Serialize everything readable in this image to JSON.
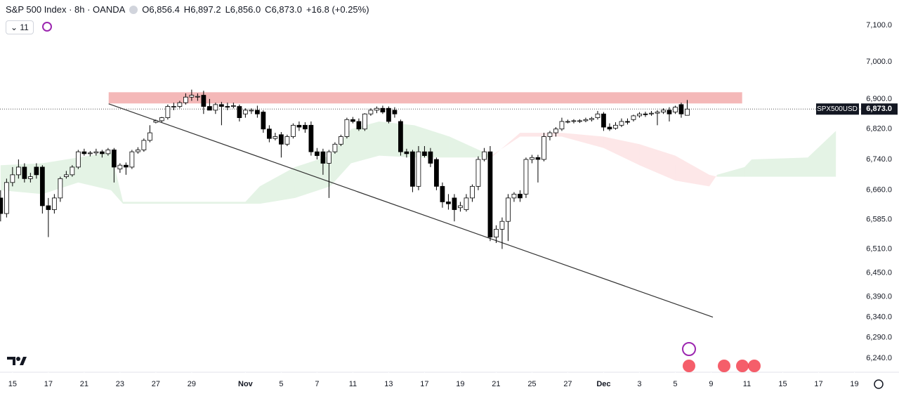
{
  "chart_data": {
    "type": "candlestick",
    "title": "S&P 500 Index · 8h · OANDA",
    "legend_values": {
      "open_label": "O",
      "open": "6,856.4",
      "high_label": "H",
      "high": "6,897.2",
      "low_label": "L",
      "low": "6,856.0",
      "close_label": "C",
      "close": "6,873.0",
      "change": "+16.8 (+0.25%)"
    },
    "interval_button": "11",
    "price_label": {
      "symbol": "SPX500USD",
      "value": "6,873.0"
    },
    "up_color": "#ffffff",
    "down_color": "#000000",
    "wick_color": "#000000",
    "log_scale": true,
    "ylim": [
      6206,
      7170
    ],
    "yticks": [
      {
        "value": 7100,
        "label": "7,100.0"
      },
      {
        "value": 7000,
        "label": "7,000.0"
      },
      {
        "value": 6900,
        "label": "6,900.0"
      },
      {
        "value": 6820,
        "label": "6,820.0"
      },
      {
        "value": 6740,
        "label": "6,740.0"
      },
      {
        "value": 6660,
        "label": "6,660.0"
      },
      {
        "value": 6585,
        "label": "6,585.0"
      },
      {
        "value": 6510,
        "label": "6,510.0"
      },
      {
        "value": 6450,
        "label": "6,450.0"
      },
      {
        "value": 6390,
        "label": "6,390.0"
      },
      {
        "value": 6340,
        "label": "6,340.0"
      },
      {
        "value": 6290,
        "label": "6,290.0"
      },
      {
        "value": 6240,
        "label": "6,240.0"
      }
    ],
    "xlim": [
      -0.1,
      144
    ],
    "xticks": [
      {
        "value": 2,
        "label": "15"
      },
      {
        "value": 8,
        "label": "17"
      },
      {
        "value": 14,
        "label": "21"
      },
      {
        "value": 20,
        "label": "23"
      },
      {
        "value": 26,
        "label": "27"
      },
      {
        "value": 32,
        "label": "29"
      },
      {
        "value": 41,
        "label": "Nov"
      },
      {
        "value": 47,
        "label": "5"
      },
      {
        "value": 53,
        "label": "7"
      },
      {
        "value": 59,
        "label": "11"
      },
      {
        "value": 65,
        "label": "13"
      },
      {
        "value": 71,
        "label": "17"
      },
      {
        "value": 77,
        "label": "19"
      },
      {
        "value": 83,
        "label": "21"
      },
      {
        "value": 89,
        "label": "25"
      },
      {
        "value": 95,
        "label": "27"
      },
      {
        "value": 101,
        "label": "Dec"
      },
      {
        "value": 107,
        "label": "3"
      },
      {
        "value": 113,
        "label": "5"
      },
      {
        "value": 119,
        "label": "9"
      },
      {
        "value": 125,
        "label": "11"
      },
      {
        "value": 131,
        "label": "15"
      },
      {
        "value": 137,
        "label": "17"
      },
      {
        "value": 143,
        "label": "19"
      }
    ],
    "ohlc": [
      [
        6640,
        6660,
        6580,
        6600
      ],
      [
        6600,
        6690,
        6590,
        6680
      ],
      [
        6680,
        6720,
        6670,
        6700
      ],
      [
        6700,
        6740,
        6690,
        6720
      ],
      [
        6720,
        6730,
        6680,
        6690
      ],
      [
        6690,
        6705,
        6680,
        6695
      ],
      [
        6720,
        6730,
        6690,
        6700
      ],
      [
        6720,
        6725,
        6600,
        6620
      ],
      [
        6620,
        6640,
        6540,
        6610
      ],
      [
        6610,
        6650,
        6600,
        6640
      ],
      [
        6640,
        6695,
        6630,
        6690
      ],
      [
        6695,
        6710,
        6690,
        6700
      ],
      [
        6700,
        6725,
        6695,
        6720
      ],
      [
        6720,
        6765,
        6715,
        6760
      ],
      [
        6760,
        6768,
        6750,
        6755
      ],
      [
        6755,
        6762,
        6748,
        6757
      ],
      [
        6757,
        6768,
        6750,
        6760
      ],
      [
        6760,
        6765,
        6745,
        6755
      ],
      [
        6755,
        6770,
        6750,
        6765
      ],
      [
        6765,
        6770,
        6680,
        6720
      ],
      [
        6715,
        6730,
        6705,
        6725
      ],
      [
        6725,
        6732,
        6700,
        6720
      ],
      [
        6720,
        6765,
        6715,
        6760
      ],
      [
        6760,
        6772,
        6755,
        6765
      ],
      [
        6765,
        6795,
        6760,
        6790
      ],
      [
        6790,
        6830,
        6785,
        6810
      ],
      [
        6838,
        6845,
        6835,
        6842
      ],
      [
        6842,
        6852,
        6838,
        6850
      ],
      [
        6850,
        6885,
        6845,
        6880
      ],
      [
        6880,
        6890,
        6870,
        6880
      ],
      [
        6880,
        6895,
        6875,
        6890
      ],
      [
        6890,
        6915,
        6885,
        6905
      ],
      [
        6905,
        6925,
        6895,
        6910
      ],
      [
        6905,
        6915,
        6895,
        6907
      ],
      [
        6910,
        6922,
        6860,
        6880
      ],
      [
        6880,
        6900,
        6870,
        6870
      ],
      [
        6870,
        6890,
        6860,
        6885
      ],
      [
        6885,
        6892,
        6830,
        6880
      ],
      [
        6880,
        6890,
        6870,
        6878
      ],
      [
        6880,
        6890,
        6875,
        6882
      ],
      [
        6880,
        6885,
        6840,
        6850
      ],
      [
        6860,
        6875,
        6850,
        6870
      ],
      [
        6868,
        6875,
        6860,
        6870
      ],
      [
        6870,
        6882,
        6850,
        6860
      ],
      [
        6865,
        6870,
        6810,
        6820
      ],
      [
        6820,
        6830,
        6785,
        6795
      ],
      [
        6795,
        6810,
        6790,
        6800
      ],
      [
        6805,
        6812,
        6745,
        6780
      ],
      [
        6780,
        6805,
        6775,
        6800
      ],
      [
        6800,
        6835,
        6795,
        6830
      ],
      [
        6830,
        6840,
        6815,
        6825
      ],
      [
        6830,
        6838,
        6810,
        6820
      ],
      [
        6830,
        6840,
        6750,
        6760
      ],
      [
        6760,
        6770,
        6740,
        6750
      ],
      [
        6760,
        6768,
        6700,
        6730
      ],
      [
        6730,
        6765,
        6640,
        6760
      ],
      [
        6760,
        6785,
        6755,
        6780
      ],
      [
        6780,
        6805,
        6775,
        6800
      ],
      [
        6800,
        6850,
        6795,
        6845
      ],
      [
        6845,
        6852,
        6835,
        6840
      ],
      [
        6840,
        6848,
        6815,
        6820
      ],
      [
        6820,
        6862,
        6815,
        6860
      ],
      [
        6860,
        6875,
        6855,
        6870
      ],
      [
        6870,
        6880,
        6862,
        6875
      ],
      [
        6875,
        6882,
        6860,
        6865
      ],
      [
        6875,
        6880,
        6835,
        6840
      ],
      [
        6870,
        6878,
        6850,
        6860
      ],
      [
        6840,
        6845,
        6750,
        6760
      ],
      [
        6760,
        6768,
        6745,
        6755
      ],
      [
        6760,
        6765,
        6655,
        6670
      ],
      [
        6670,
        6775,
        6660,
        6760
      ],
      [
        6760,
        6775,
        6745,
        6750
      ],
      [
        6760,
        6770,
        6720,
        6730
      ],
      [
        6740,
        6745,
        6660,
        6670
      ],
      [
        6670,
        6680,
        6615,
        6630
      ],
      [
        6630,
        6650,
        6610,
        6625
      ],
      [
        6640,
        6650,
        6580,
        6610
      ],
      [
        6615,
        6630,
        6605,
        6620
      ],
      [
        6610,
        6650,
        6605,
        6640
      ],
      [
        6640,
        6675,
        6630,
        6670
      ],
      [
        6670,
        6748,
        6660,
        6740
      ],
      [
        6740,
        6770,
        6735,
        6760
      ],
      [
        6760,
        6775,
        6530,
        6540
      ],
      [
        6540,
        6570,
        6525,
        6560
      ],
      [
        6560,
        6590,
        6510,
        6580
      ],
      [
        6580,
        6650,
        6530,
        6640
      ],
      [
        6640,
        6655,
        6630,
        6650
      ],
      [
        6650,
        6660,
        6630,
        6640
      ],
      [
        6650,
        6745,
        6640,
        6740
      ],
      [
        6740,
        6752,
        6730,
        6745
      ],
      [
        6745,
        6752,
        6680,
        6740
      ],
      [
        6740,
        6810,
        6735,
        6800
      ],
      [
        6800,
        6815,
        6790,
        6810
      ],
      [
        6810,
        6825,
        6800,
        6820
      ],
      [
        6820,
        6850,
        6815,
        6840
      ],
      [
        6840,
        6845,
        6835,
        6840
      ],
      [
        6840,
        6846,
        6835,
        6842
      ],
      [
        6840,
        6846,
        6836,
        6842
      ],
      [
        6842,
        6850,
        6838,
        6845
      ],
      [
        6845,
        6852,
        6840,
        6848
      ],
      [
        6850,
        6868,
        6845,
        6860
      ],
      [
        6860,
        6865,
        6815,
        6825
      ],
      [
        6825,
        6835,
        6815,
        6820
      ],
      [
        6822,
        6838,
        6818,
        6830
      ],
      [
        6830,
        6848,
        6825,
        6840
      ],
      [
        6840,
        6848,
        6832,
        6838
      ],
      [
        6845,
        6858,
        6840,
        6855
      ],
      [
        6855,
        6865,
        6850,
        6860
      ],
      [
        6860,
        6866,
        6852,
        6858
      ],
      [
        6860,
        6868,
        6855,
        6862
      ],
      [
        6862,
        6870,
        6830,
        6865
      ],
      [
        6865,
        6875,
        6860,
        6870
      ],
      [
        6870,
        6878,
        6840,
        6860
      ],
      [
        6865,
        6882,
        6860,
        6878
      ],
      [
        6885,
        6890,
        6850,
        6860
      ],
      [
        6856.4,
        6897.2,
        6856.0,
        6873.0
      ]
    ],
    "cloud": {
      "x": [
        0,
        7,
        13,
        18.5,
        20.5,
        41,
        43.4,
        49.3,
        55.2,
        58.7,
        63.4,
        69.3,
        75.2,
        82.2,
        87,
        94,
        101,
        107,
        113,
        118.7,
        120,
        124.6,
        125.8,
        135.2,
        139.9
      ],
      "span_a": [
        6725,
        6730,
        6745,
        6760,
        6630,
        6630,
        6670,
        6720,
        6750,
        6820,
        6840,
        6830,
        6800,
        6750,
        6800,
        6800,
        6770,
        6725,
        6685,
        6670,
        6700,
        6720,
        6740,
        6745,
        6815
      ],
      "span_b": [
        6660,
        6650,
        6680,
        6660,
        6625,
        6625,
        6625,
        6640,
        6670,
        6730,
        6750,
        6745,
        6745,
        6745,
        6810,
        6810,
        6800,
        6780,
        6750,
        6700,
        6695,
        6695,
        6695,
        6695,
        6695
      ],
      "bull_color": "rgba(76,175,80,0.15)",
      "bear_color": "rgba(242,54,69,0.12)"
    },
    "zone": {
      "x": [
        18.1,
        124.2
      ],
      "y": [
        6888,
        6918
      ],
      "color": "rgba(239,154,154,0.7)"
    },
    "trendline": {
      "x": [
        18.1,
        119.3
      ],
      "y": [
        6887,
        6340
      ],
      "color": "#333333"
    }
  }
}
